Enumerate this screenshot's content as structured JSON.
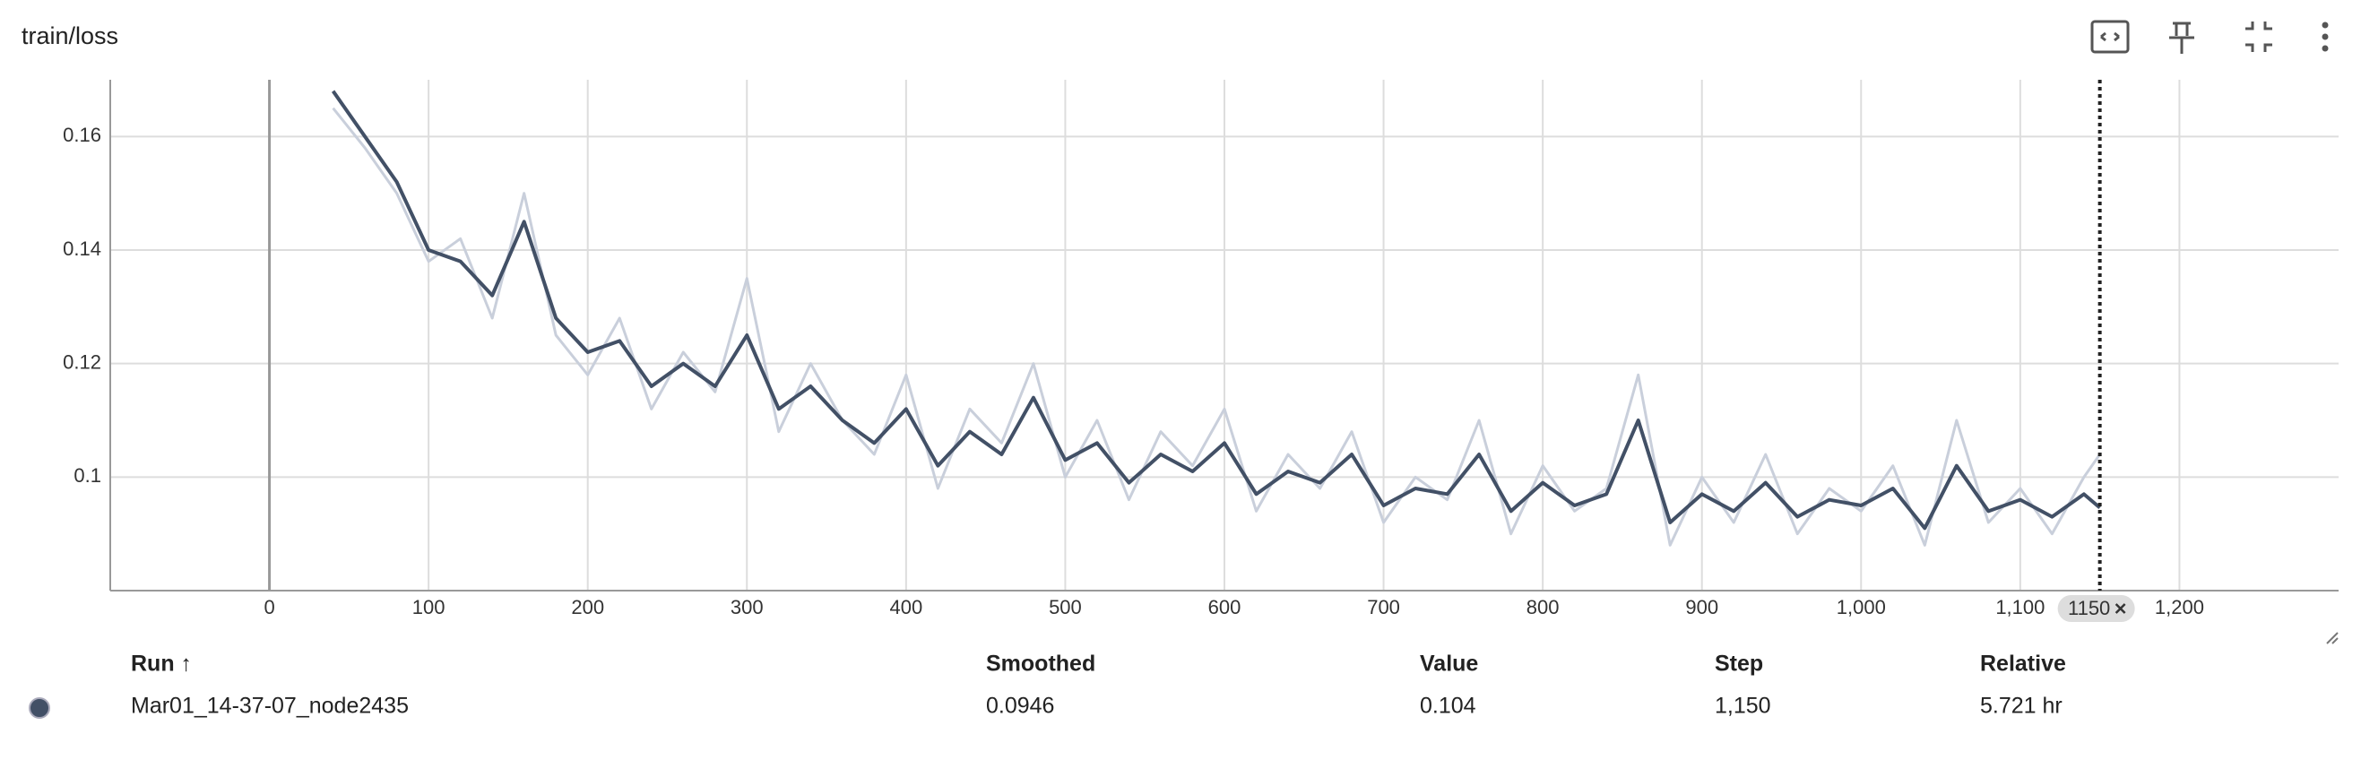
{
  "header": {
    "title": "train/loss"
  },
  "chart_data": {
    "type": "line",
    "x": [
      40,
      60,
      80,
      100,
      120,
      140,
      160,
      180,
      200,
      220,
      240,
      260,
      280,
      300,
      320,
      340,
      360,
      380,
      400,
      420,
      440,
      460,
      480,
      500,
      520,
      540,
      560,
      580,
      600,
      620,
      640,
      660,
      680,
      700,
      720,
      740,
      760,
      780,
      800,
      820,
      840,
      860,
      880,
      900,
      920,
      940,
      960,
      980,
      1000,
      1020,
      1040,
      1060,
      1080,
      1100,
      1120,
      1140,
      1150
    ],
    "series": [
      {
        "color": "#c9cfdb",
        "values": [
          0.165,
          0.158,
          0.15,
          0.138,
          0.142,
          0.128,
          0.15,
          0.125,
          0.118,
          0.128,
          0.112,
          0.122,
          0.115,
          0.135,
          0.108,
          0.12,
          0.11,
          0.104,
          0.118,
          0.098,
          0.112,
          0.106,
          0.12,
          0.1,
          0.11,
          0.096,
          0.108,
          0.102,
          0.112,
          0.094,
          0.104,
          0.098,
          0.108,
          0.092,
          0.1,
          0.096,
          0.11,
          0.09,
          0.102,
          0.094,
          0.098,
          0.118,
          0.088,
          0.1,
          0.092,
          0.104,
          0.09,
          0.098,
          0.094,
          0.102,
          0.088,
          0.11,
          0.092,
          0.098,
          0.09,
          0.1,
          0.104
        ]
      },
      {
        "color": "#425066",
        "values": [
          0.168,
          0.16,
          0.152,
          0.14,
          0.138,
          0.132,
          0.145,
          0.128,
          0.122,
          0.124,
          0.116,
          0.12,
          0.116,
          0.125,
          0.112,
          0.116,
          0.11,
          0.106,
          0.112,
          0.102,
          0.108,
          0.104,
          0.114,
          0.103,
          0.106,
          0.099,
          0.104,
          0.101,
          0.106,
          0.097,
          0.101,
          0.099,
          0.104,
          0.095,
          0.098,
          0.097,
          0.104,
          0.094,
          0.099,
          0.095,
          0.097,
          0.11,
          0.092,
          0.097,
          0.094,
          0.099,
          0.093,
          0.096,
          0.095,
          0.098,
          0.091,
          0.102,
          0.094,
          0.096,
          0.093,
          0.097,
          0.0946
        ]
      }
    ],
    "xlim": [
      -100,
      1300
    ],
    "ylim": [
      0.08,
      0.17
    ],
    "xticks": [
      0,
      100,
      200,
      300,
      400,
      500,
      600,
      700,
      800,
      900,
      {
        "value": 1000,
        "label": "1,000"
      },
      {
        "value": 1100,
        "label": "1,100"
      },
      {
        "value": 1200,
        "label": "1,200"
      }
    ],
    "yticks": [
      0.1,
      0.12,
      0.14,
      0.16
    ],
    "grid": true,
    "cursor": {
      "step": 1150
    }
  },
  "table": {
    "columns": [
      "Run ↑",
      "Smoothed",
      "Value",
      "Step",
      "Relative"
    ],
    "rows": [
      [
        "Mar01_14-37-07_node2435",
        "0.0946",
        "0.104",
        "1,150",
        "5.721 hr"
      ]
    ]
  }
}
